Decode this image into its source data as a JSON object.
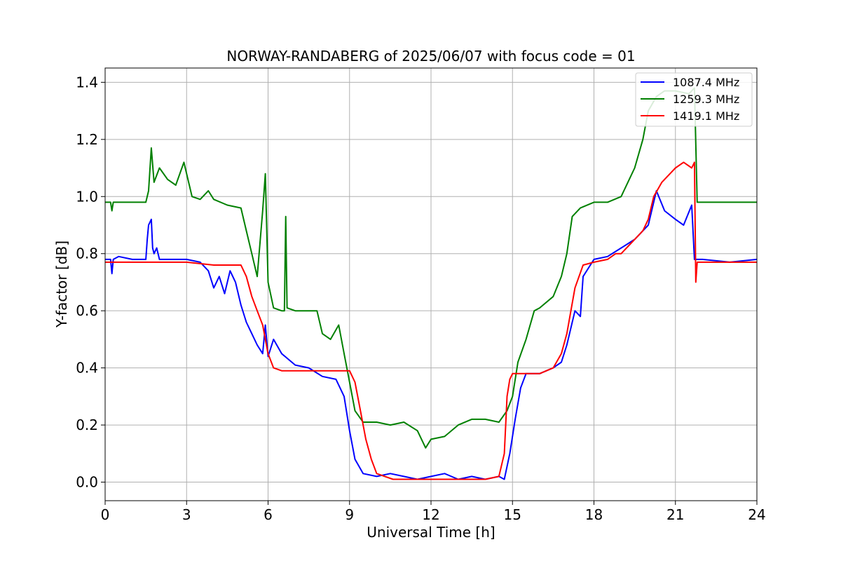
{
  "chart_data": {
    "type": "line",
    "title": "NORWAY-RANDABERG of 2025/06/07 with focus code = 01",
    "xlabel": "Universal Time [h]",
    "ylabel": "Y-factor [dB]",
    "xlim": [
      0,
      24
    ],
    "ylim": [
      -0.065,
      1.45
    ],
    "xticks": [
      0,
      3,
      6,
      9,
      12,
      15,
      18,
      21,
      24
    ],
    "yticks": [
      0.0,
      0.2,
      0.4,
      0.6,
      0.8,
      1.0,
      1.2,
      1.4
    ],
    "xtick_labels": [
      "0",
      "3",
      "6",
      "9",
      "12",
      "15",
      "18",
      "21",
      "24"
    ],
    "ytick_labels": [
      "0.0",
      "0.2",
      "0.4",
      "0.6",
      "0.8",
      "1.0",
      "1.2",
      "1.4"
    ],
    "grid": true,
    "legend_position": "top-right",
    "series": [
      {
        "name": "1087.4 MHz",
        "color": "#0000ff",
        "x": [
          0,
          0.2,
          0.25,
          0.3,
          0.5,
          1.0,
          1.5,
          1.55,
          1.6,
          1.7,
          1.75,
          1.8,
          1.9,
          2.0,
          2.3,
          3.0,
          3.5,
          3.8,
          4.0,
          4.2,
          4.4,
          4.6,
          4.8,
          5.0,
          5.2,
          5.4,
          5.6,
          5.8,
          5.9,
          6.0,
          6.2,
          6.5,
          7.0,
          7.5,
          8.0,
          8.5,
          8.8,
          9.0,
          9.2,
          9.5,
          10.0,
          10.5,
          11.0,
          11.5,
          12.0,
          12.5,
          13.0,
          13.5,
          14.0,
          14.5,
          14.7,
          14.9,
          15.1,
          15.3,
          15.5,
          16.0,
          16.5,
          16.8,
          17.0,
          17.3,
          17.5,
          17.6,
          18.0,
          18.5,
          19.0,
          19.5,
          20.0,
          20.3,
          20.6,
          21.0,
          21.3,
          21.6,
          21.7,
          21.8,
          22.0,
          23.0,
          24.0
        ],
        "y": [
          0.78,
          0.78,
          0.73,
          0.78,
          0.79,
          0.78,
          0.78,
          0.85,
          0.9,
          0.92,
          0.82,
          0.8,
          0.82,
          0.78,
          0.78,
          0.78,
          0.77,
          0.74,
          0.68,
          0.72,
          0.66,
          0.74,
          0.7,
          0.62,
          0.56,
          0.52,
          0.48,
          0.45,
          0.55,
          0.44,
          0.5,
          0.45,
          0.41,
          0.4,
          0.37,
          0.36,
          0.3,
          0.18,
          0.08,
          0.03,
          0.02,
          0.03,
          0.02,
          0.01,
          0.02,
          0.03,
          0.01,
          0.02,
          0.01,
          0.02,
          0.01,
          0.1,
          0.22,
          0.33,
          0.38,
          0.38,
          0.4,
          0.42,
          0.48,
          0.6,
          0.58,
          0.72,
          0.78,
          0.79,
          0.82,
          0.85,
          0.9,
          1.02,
          0.95,
          0.92,
          0.9,
          0.97,
          0.78,
          0.78,
          0.78,
          0.77,
          0.78
        ]
      },
      {
        "name": "1259.3 MHz",
        "color": "#008000",
        "x": [
          0,
          0.2,
          0.25,
          0.3,
          1.0,
          1.5,
          1.6,
          1.7,
          1.8,
          2.0,
          2.3,
          2.6,
          2.9,
          3.2,
          3.5,
          3.8,
          4.0,
          4.5,
          5.0,
          5.2,
          5.4,
          5.6,
          5.8,
          5.9,
          6.0,
          6.2,
          6.5,
          6.6,
          6.65,
          6.7,
          7.0,
          7.5,
          7.8,
          8.0,
          8.3,
          8.6,
          8.8,
          9.0,
          9.2,
          9.5,
          10.0,
          10.5,
          11.0,
          11.5,
          11.8,
          12.0,
          12.5,
          13.0,
          13.5,
          14.0,
          14.5,
          14.8,
          15.0,
          15.2,
          15.5,
          15.8,
          16.0,
          16.5,
          16.8,
          17.0,
          17.2,
          17.5,
          18.0,
          18.5,
          19.0,
          19.5,
          19.8,
          20.0,
          20.3,
          20.6,
          21.0,
          21.5,
          21.7,
          21.8,
          22.0,
          23.0,
          24.0
        ],
        "y": [
          0.98,
          0.98,
          0.95,
          0.98,
          0.98,
          0.98,
          1.02,
          1.17,
          1.05,
          1.1,
          1.06,
          1.04,
          1.12,
          1.0,
          0.99,
          1.02,
          0.99,
          0.97,
          0.96,
          0.88,
          0.8,
          0.72,
          0.95,
          1.08,
          0.7,
          0.61,
          0.6,
          0.6,
          0.93,
          0.61,
          0.6,
          0.6,
          0.6,
          0.52,
          0.5,
          0.55,
          0.45,
          0.35,
          0.25,
          0.21,
          0.21,
          0.2,
          0.21,
          0.18,
          0.12,
          0.15,
          0.16,
          0.2,
          0.22,
          0.22,
          0.21,
          0.25,
          0.3,
          0.42,
          0.5,
          0.6,
          0.61,
          0.65,
          0.72,
          0.8,
          0.93,
          0.96,
          0.98,
          0.98,
          1.0,
          1.1,
          1.2,
          1.3,
          1.35,
          1.37,
          1.37,
          1.36,
          1.38,
          0.98,
          0.98,
          0.98,
          0.98
        ]
      },
      {
        "name": "1419.1 MHz",
        "color": "#ff0000",
        "x": [
          0,
          1.0,
          2.0,
          3.0,
          4.0,
          4.5,
          5.0,
          5.2,
          5.4,
          5.6,
          5.8,
          6.0,
          6.2,
          6.5,
          7.0,
          7.5,
          8.0,
          8.5,
          9.0,
          9.2,
          9.4,
          9.6,
          9.8,
          10.0,
          10.3,
          10.6,
          11.0,
          11.5,
          12.0,
          12.5,
          13.0,
          13.5,
          14.0,
          14.5,
          14.7,
          14.8,
          14.9,
          15.0,
          15.3,
          15.6,
          16.0,
          16.5,
          16.8,
          17.0,
          17.3,
          17.6,
          18.0,
          18.5,
          18.8,
          19.0,
          19.3,
          19.6,
          19.8,
          20.0,
          20.2,
          20.5,
          20.8,
          21.0,
          21.3,
          21.6,
          21.7,
          21.75,
          21.8,
          22.0,
          23.0,
          24.0
        ],
        "y": [
          0.77,
          0.77,
          0.77,
          0.77,
          0.76,
          0.76,
          0.76,
          0.72,
          0.65,
          0.6,
          0.55,
          0.45,
          0.4,
          0.39,
          0.39,
          0.39,
          0.39,
          0.39,
          0.39,
          0.35,
          0.25,
          0.15,
          0.08,
          0.03,
          0.02,
          0.01,
          0.01,
          0.01,
          0.01,
          0.01,
          0.01,
          0.01,
          0.01,
          0.02,
          0.1,
          0.3,
          0.36,
          0.38,
          0.38,
          0.38,
          0.38,
          0.4,
          0.45,
          0.52,
          0.68,
          0.76,
          0.77,
          0.78,
          0.8,
          0.8,
          0.83,
          0.86,
          0.88,
          0.92,
          1.0,
          1.05,
          1.08,
          1.1,
          1.12,
          1.1,
          1.12,
          0.7,
          0.77,
          0.77,
          0.77,
          0.77
        ]
      }
    ]
  }
}
